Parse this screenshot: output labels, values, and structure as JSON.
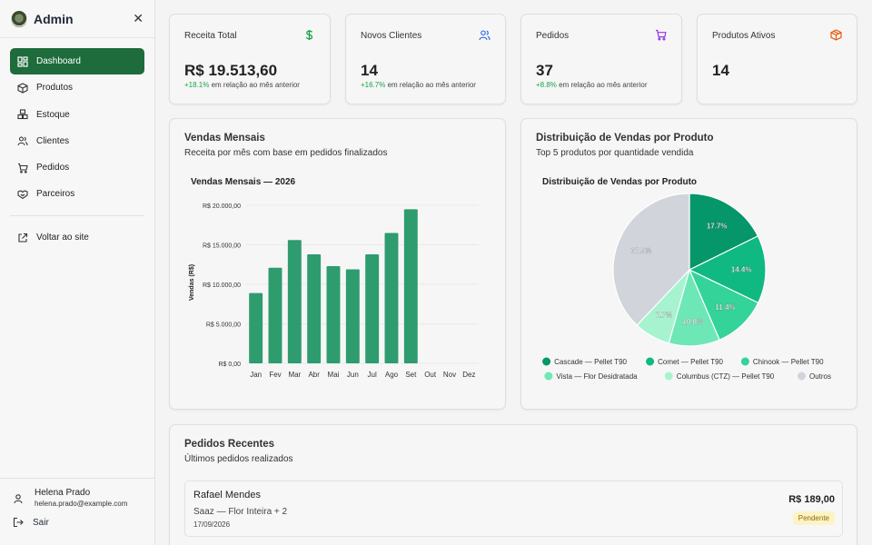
{
  "brand": {
    "title": "Admin"
  },
  "sidebar": {
    "items": [
      {
        "label": "Dashboard",
        "icon": "dashboard-icon",
        "active": true
      },
      {
        "label": "Produtos",
        "icon": "box-icon"
      },
      {
        "label": "Estoque",
        "icon": "stack-icon"
      },
      {
        "label": "Clientes",
        "icon": "users-icon"
      },
      {
        "label": "Pedidos",
        "icon": "cart-icon"
      },
      {
        "label": "Parceiros",
        "icon": "handshake-icon"
      }
    ],
    "back_label": "Voltar ao site",
    "user": {
      "name": "Helena Prado",
      "email": "helena.prado@example.com"
    },
    "logout_label": "Sair"
  },
  "stats": [
    {
      "title": "Receita Total",
      "value": "R$ 19.513,60",
      "change": "+18.1%",
      "change_text": " em relação ao mês anterior",
      "icon": "dollar-icon",
      "icon_color": "#16a34a"
    },
    {
      "title": "Novos Clientes",
      "value": "14",
      "change": "+16.7%",
      "change_text": " em relação ao mês anterior",
      "icon": "users-icon",
      "icon_color": "#2563eb"
    },
    {
      "title": "Pedidos",
      "value": "37",
      "change": "+8.8%",
      "change_text": " em relação ao mês anterior",
      "icon": "cart-icon",
      "icon_color": "#9333ea"
    },
    {
      "title": "Produtos Ativos",
      "value": "14",
      "icon": "box-icon",
      "icon_color": "#ea580c"
    }
  ],
  "sales_panel": {
    "title": "Vendas Mensais",
    "subtitle": "Receita por mês com base em pedidos finalizados"
  },
  "distribution_panel": {
    "title": "Distribuição de Vendas por Produto",
    "subtitle": "Top 5 produtos por quantidade vendida"
  },
  "chart_data": [
    {
      "type": "bar",
      "title": "Vendas Mensais — 2026",
      "xlabel": "",
      "ylabel": "Vendas (R$)",
      "categories": [
        "Jan",
        "Fev",
        "Mar",
        "Abr",
        "Mai",
        "Jun",
        "Jul",
        "Ago",
        "Set",
        "Out",
        "Nov",
        "Dez"
      ],
      "values": [
        8900,
        12100,
        15600,
        13800,
        12300,
        11900,
        13800,
        16500,
        19500,
        0,
        0,
        0
      ],
      "ylim": [
        0,
        20000
      ],
      "yticks": [
        0,
        5000,
        10000,
        15000,
        20000
      ],
      "ytick_labels": [
        "R$ 0,00",
        "R$ 5.000,00",
        "R$ 10.000,00",
        "R$ 15.000,00",
        "R$ 20.000,00"
      ],
      "color": "#2e9c6e",
      "grid": true
    },
    {
      "type": "pie",
      "title": "Distribuição de Vendas por Produto",
      "legend_position": "bottom",
      "slices": [
        {
          "label": "Cascade — Pellet T90",
          "value": 17.7,
          "display": "17.7%",
          "color": "#059669"
        },
        {
          "label": "Comet — Pellet T90",
          "value": 14.4,
          "display": "14.4%",
          "color": "#10b981"
        },
        {
          "label": "Chinook — Pellet T90",
          "value": 11.4,
          "display": "11.4%",
          "color": "#34d399"
        },
        {
          "label": "Vista — Flor Desidratada",
          "value": 10.8,
          "display": "10.8%",
          "color": "#6ee7b7"
        },
        {
          "label": "Columbus (CTZ) — Pellet T90",
          "value": 7.7,
          "display": "7.7%",
          "color": "#a7f3d0"
        },
        {
          "label": "Outros",
          "value": 37.9,
          "display": "37.9%",
          "color": "#d1d5db"
        }
      ]
    }
  ],
  "orders_panel": {
    "title": "Pedidos Recentes",
    "subtitle": "Últimos pedidos realizados",
    "orders": [
      {
        "customer": "Rafael Mendes",
        "items": "Saaz — Flor Inteira + 2",
        "date": "17/09/2026",
        "total": "R$ 189,00",
        "status": "Pendente"
      }
    ]
  }
}
